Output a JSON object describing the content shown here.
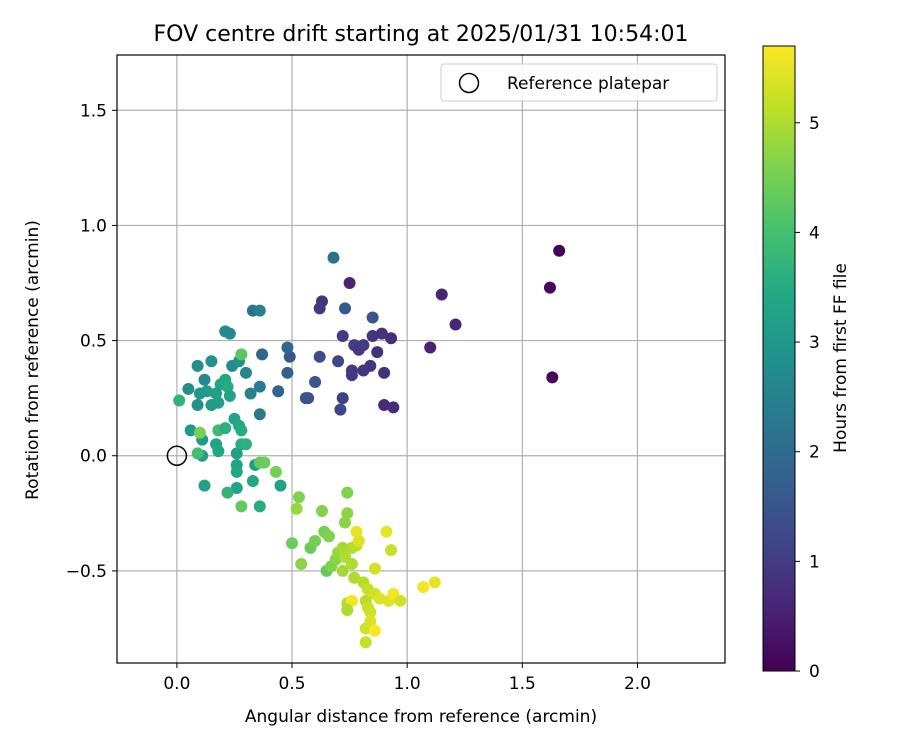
{
  "chart_data": {
    "type": "scatter",
    "title": "FOV centre drift starting at 2025/01/31 10:54:01",
    "xlabel": "Angular distance from reference (arcmin)",
    "ylabel": "Rotation from reference (arcmin)",
    "xlim": [
      -0.26,
      2.38
    ],
    "ylim": [
      -0.9,
      1.74
    ],
    "xticks": [
      0.0,
      0.5,
      1.0,
      1.5,
      2.0
    ],
    "yticks": [
      -0.5,
      0.0,
      0.5,
      1.0,
      1.5
    ],
    "ytick_labels": [
      "−0.5",
      "0.0",
      "0.5",
      "1.0",
      "1.5"
    ],
    "xtick_labels": [
      "0.0",
      "0.5",
      "1.0",
      "1.5",
      "2.0"
    ],
    "grid": true,
    "legend": {
      "placement": "top-right",
      "entries": [
        "Reference platepar"
      ]
    },
    "reference_point": {
      "x": 0.0,
      "y": 0.0,
      "marker": "open-circle"
    },
    "colorbar": {
      "label": "Hours from first FF file",
      "colormap": "viridis",
      "range": [
        0,
        5.7
      ],
      "ticks": [
        0,
        1,
        2,
        3,
        4,
        5
      ]
    },
    "points": [
      {
        "x": 1.66,
        "y": 0.89,
        "t": 0.05
      },
      {
        "x": 1.62,
        "y": 0.73,
        "t": 0.15
      },
      {
        "x": 1.63,
        "y": 0.34,
        "t": 0.1
      },
      {
        "x": 1.15,
        "y": 0.7,
        "t": 0.6
      },
      {
        "x": 1.21,
        "y": 0.57,
        "t": 0.65
      },
      {
        "x": 1.1,
        "y": 0.47,
        "t": 0.55
      },
      {
        "x": 0.75,
        "y": 0.75,
        "t": 0.6
      },
      {
        "x": 0.63,
        "y": 0.67,
        "t": 0.9
      },
      {
        "x": 0.62,
        "y": 0.64,
        "t": 0.95
      },
      {
        "x": 0.73,
        "y": 0.64,
        "t": 1.6
      },
      {
        "x": 0.68,
        "y": 0.86,
        "t": 2.1
      },
      {
        "x": 0.85,
        "y": 0.6,
        "t": 1.5
      },
      {
        "x": 0.72,
        "y": 0.52,
        "t": 1.0
      },
      {
        "x": 0.77,
        "y": 0.48,
        "t": 1.1
      },
      {
        "x": 0.79,
        "y": 0.46,
        "t": 0.9
      },
      {
        "x": 0.81,
        "y": 0.48,
        "t": 1.0
      },
      {
        "x": 0.85,
        "y": 0.52,
        "t": 0.85
      },
      {
        "x": 0.89,
        "y": 0.53,
        "t": 0.8
      },
      {
        "x": 0.93,
        "y": 0.51,
        "t": 0.75
      },
      {
        "x": 0.87,
        "y": 0.45,
        "t": 0.8
      },
      {
        "x": 0.81,
        "y": 0.37,
        "t": 0.9
      },
      {
        "x": 0.84,
        "y": 0.39,
        "t": 0.85
      },
      {
        "x": 0.76,
        "y": 0.37,
        "t": 0.9
      },
      {
        "x": 0.76,
        "y": 0.35,
        "t": 0.95
      },
      {
        "x": 0.7,
        "y": 0.41,
        "t": 1.2
      },
      {
        "x": 0.62,
        "y": 0.43,
        "t": 1.3
      },
      {
        "x": 0.72,
        "y": 0.25,
        "t": 1.1
      },
      {
        "x": 0.71,
        "y": 0.2,
        "t": 1.2
      },
      {
        "x": 0.9,
        "y": 0.36,
        "t": 0.8
      },
      {
        "x": 0.9,
        "y": 0.22,
        "t": 0.7
      },
      {
        "x": 0.94,
        "y": 0.21,
        "t": 0.75
      },
      {
        "x": 0.57,
        "y": 0.25,
        "t": 1.4
      },
      {
        "x": 0.56,
        "y": 0.25,
        "t": 1.45
      },
      {
        "x": 0.6,
        "y": 0.32,
        "t": 1.5
      },
      {
        "x": 0.49,
        "y": 0.43,
        "t": 1.55
      },
      {
        "x": 0.48,
        "y": 0.47,
        "t": 1.9
      },
      {
        "x": 0.48,
        "y": 0.36,
        "t": 1.7
      },
      {
        "x": 0.44,
        "y": 0.28,
        "t": 1.8
      },
      {
        "x": 0.37,
        "y": 0.44,
        "t": 1.9
      },
      {
        "x": 0.33,
        "y": 0.63,
        "t": 2.2
      },
      {
        "x": 0.36,
        "y": 0.63,
        "t": 2.5
      },
      {
        "x": 0.36,
        "y": 0.3,
        "t": 2.4
      },
      {
        "x": 0.36,
        "y": 0.18,
        "t": 2.3
      },
      {
        "x": 0.3,
        "y": 0.36,
        "t": 2.6
      },
      {
        "x": 0.32,
        "y": 0.27,
        "t": 2.5
      },
      {
        "x": 0.21,
        "y": 0.54,
        "t": 2.8
      },
      {
        "x": 0.23,
        "y": 0.53,
        "t": 2.7
      },
      {
        "x": 0.24,
        "y": 0.39,
        "t": 2.7
      },
      {
        "x": 0.27,
        "y": 0.41,
        "t": 2.9
      },
      {
        "x": 0.28,
        "y": 0.44,
        "t": 4.2
      },
      {
        "x": 0.15,
        "y": 0.41,
        "t": 2.9
      },
      {
        "x": 0.09,
        "y": 0.39,
        "t": 2.8
      },
      {
        "x": 0.12,
        "y": 0.33,
        "t": 2.7
      },
      {
        "x": 0.05,
        "y": 0.29,
        "t": 2.8
      },
      {
        "x": 0.1,
        "y": 0.27,
        "t": 3.0
      },
      {
        "x": 0.13,
        "y": 0.28,
        "t": 3.1
      },
      {
        "x": 0.17,
        "y": 0.27,
        "t": 3.2
      },
      {
        "x": 0.19,
        "y": 0.31,
        "t": 3.3
      },
      {
        "x": 0.21,
        "y": 0.33,
        "t": 3.4
      },
      {
        "x": 0.22,
        "y": 0.3,
        "t": 3.5
      },
      {
        "x": 0.23,
        "y": 0.26,
        "t": 3.3
      },
      {
        "x": 0.18,
        "y": 0.23,
        "t": 3.2
      },
      {
        "x": 0.15,
        "y": 0.22,
        "t": 3.1
      },
      {
        "x": 0.09,
        "y": 0.22,
        "t": 2.9
      },
      {
        "x": 0.01,
        "y": 0.24,
        "t": 3.7
      },
      {
        "x": 0.06,
        "y": 0.11,
        "t": 3.0
      },
      {
        "x": 0.11,
        "y": 0.07,
        "t": 3.1
      },
      {
        "x": 0.11,
        "y": 0.0,
        "t": 3.2
      },
      {
        "x": 0.09,
        "y": 0.01,
        "t": 4.0
      },
      {
        "x": 0.1,
        "y": 0.1,
        "t": 4.5
      },
      {
        "x": 0.18,
        "y": 0.11,
        "t": 3.9
      },
      {
        "x": 0.21,
        "y": 0.12,
        "t": 3.6
      },
      {
        "x": 0.25,
        "y": 0.16,
        "t": 3.3
      },
      {
        "x": 0.27,
        "y": 0.13,
        "t": 3.4
      },
      {
        "x": 0.28,
        "y": 0.11,
        "t": 3.5
      },
      {
        "x": 0.17,
        "y": 0.05,
        "t": 3.3
      },
      {
        "x": 0.18,
        "y": 0.02,
        "t": 3.4
      },
      {
        "x": 0.26,
        "y": 0.01,
        "t": 3.2
      },
      {
        "x": 0.28,
        "y": 0.05,
        "t": 3.5
      },
      {
        "x": 0.3,
        "y": 0.05,
        "t": 3.6
      },
      {
        "x": 0.26,
        "y": -0.04,
        "t": 3.3
      },
      {
        "x": 0.26,
        "y": -0.07,
        "t": 3.4
      },
      {
        "x": 0.34,
        "y": -0.04,
        "t": 3.2
      },
      {
        "x": 0.36,
        "y": -0.03,
        "t": 4.3
      },
      {
        "x": 0.38,
        "y": -0.03,
        "t": 4.4
      },
      {
        "x": 0.43,
        "y": -0.07,
        "t": 4.5
      },
      {
        "x": 0.45,
        "y": -0.13,
        "t": 3.3
      },
      {
        "x": 0.33,
        "y": -0.11,
        "t": 3.4
      },
      {
        "x": 0.26,
        "y": -0.14,
        "t": 3.3
      },
      {
        "x": 0.22,
        "y": -0.16,
        "t": 3.7
      },
      {
        "x": 0.12,
        "y": -0.13,
        "t": 3.2
      },
      {
        "x": 0.28,
        "y": -0.22,
        "t": 4.3
      },
      {
        "x": 0.36,
        "y": -0.22,
        "t": 3.5
      },
      {
        "x": 0.53,
        "y": -0.18,
        "t": 4.6
      },
      {
        "x": 0.52,
        "y": -0.23,
        "t": 4.8
      },
      {
        "x": 0.5,
        "y": -0.38,
        "t": 4.4
      },
      {
        "x": 0.58,
        "y": -0.4,
        "t": 4.4
      },
      {
        "x": 0.6,
        "y": -0.37,
        "t": 4.5
      },
      {
        "x": 0.63,
        "y": -0.24,
        "t": 4.6
      },
      {
        "x": 0.64,
        "y": -0.33,
        "t": 4.5
      },
      {
        "x": 0.66,
        "y": -0.35,
        "t": 4.6
      },
      {
        "x": 0.54,
        "y": -0.47,
        "t": 4.7
      },
      {
        "x": 0.65,
        "y": -0.5,
        "t": 4.3
      },
      {
        "x": 0.67,
        "y": -0.48,
        "t": 4.6
      },
      {
        "x": 0.69,
        "y": -0.45,
        "t": 4.7
      },
      {
        "x": 0.7,
        "y": -0.42,
        "t": 4.8
      },
      {
        "x": 0.72,
        "y": -0.4,
        "t": 4.9
      },
      {
        "x": 0.73,
        "y": -0.44,
        "t": 5.0
      },
      {
        "x": 0.72,
        "y": -0.5,
        "t": 4.9
      },
      {
        "x": 0.74,
        "y": -0.16,
        "t": 4.6
      },
      {
        "x": 0.74,
        "y": -0.25,
        "t": 4.7
      },
      {
        "x": 0.73,
        "y": -0.29,
        "t": 4.7
      },
      {
        "x": 0.76,
        "y": -0.4,
        "t": 5.0
      },
      {
        "x": 0.78,
        "y": -0.39,
        "t": 5.1
      },
      {
        "x": 0.78,
        "y": -0.33,
        "t": 5.5
      },
      {
        "x": 0.79,
        "y": -0.37,
        "t": 5.4
      },
      {
        "x": 0.76,
        "y": -0.47,
        "t": 5.0
      },
      {
        "x": 0.77,
        "y": -0.53,
        "t": 5.0
      },
      {
        "x": 0.81,
        "y": -0.55,
        "t": 5.1
      },
      {
        "x": 0.83,
        "y": -0.58,
        "t": 5.2
      },
      {
        "x": 0.86,
        "y": -0.49,
        "t": 5.3
      },
      {
        "x": 0.86,
        "y": -0.6,
        "t": 5.3
      },
      {
        "x": 0.88,
        "y": -0.62,
        "t": 5.4
      },
      {
        "x": 0.91,
        "y": -0.33,
        "t": 5.5
      },
      {
        "x": 0.93,
        "y": -0.41,
        "t": 5.2
      },
      {
        "x": 0.92,
        "y": -0.63,
        "t": 5.4
      },
      {
        "x": 0.94,
        "y": -0.6,
        "t": 5.6
      },
      {
        "x": 0.97,
        "y": -0.63,
        "t": 5.3
      },
      {
        "x": 0.82,
        "y": -0.63,
        "t": 5.1
      },
      {
        "x": 0.83,
        "y": -0.66,
        "t": 5.2
      },
      {
        "x": 0.84,
        "y": -0.68,
        "t": 5.3
      },
      {
        "x": 0.74,
        "y": -0.64,
        "t": 5.1
      },
      {
        "x": 0.76,
        "y": -0.63,
        "t": 5.6
      },
      {
        "x": 0.74,
        "y": -0.67,
        "t": 5.0
      },
      {
        "x": 0.84,
        "y": -0.72,
        "t": 5.4
      },
      {
        "x": 0.82,
        "y": -0.75,
        "t": 5.3
      },
      {
        "x": 0.86,
        "y": -0.76,
        "t": 5.7
      },
      {
        "x": 0.82,
        "y": -0.81,
        "t": 5.2
      },
      {
        "x": 1.07,
        "y": -0.57,
        "t": 5.6
      },
      {
        "x": 1.12,
        "y": -0.55,
        "t": 5.5
      }
    ]
  }
}
